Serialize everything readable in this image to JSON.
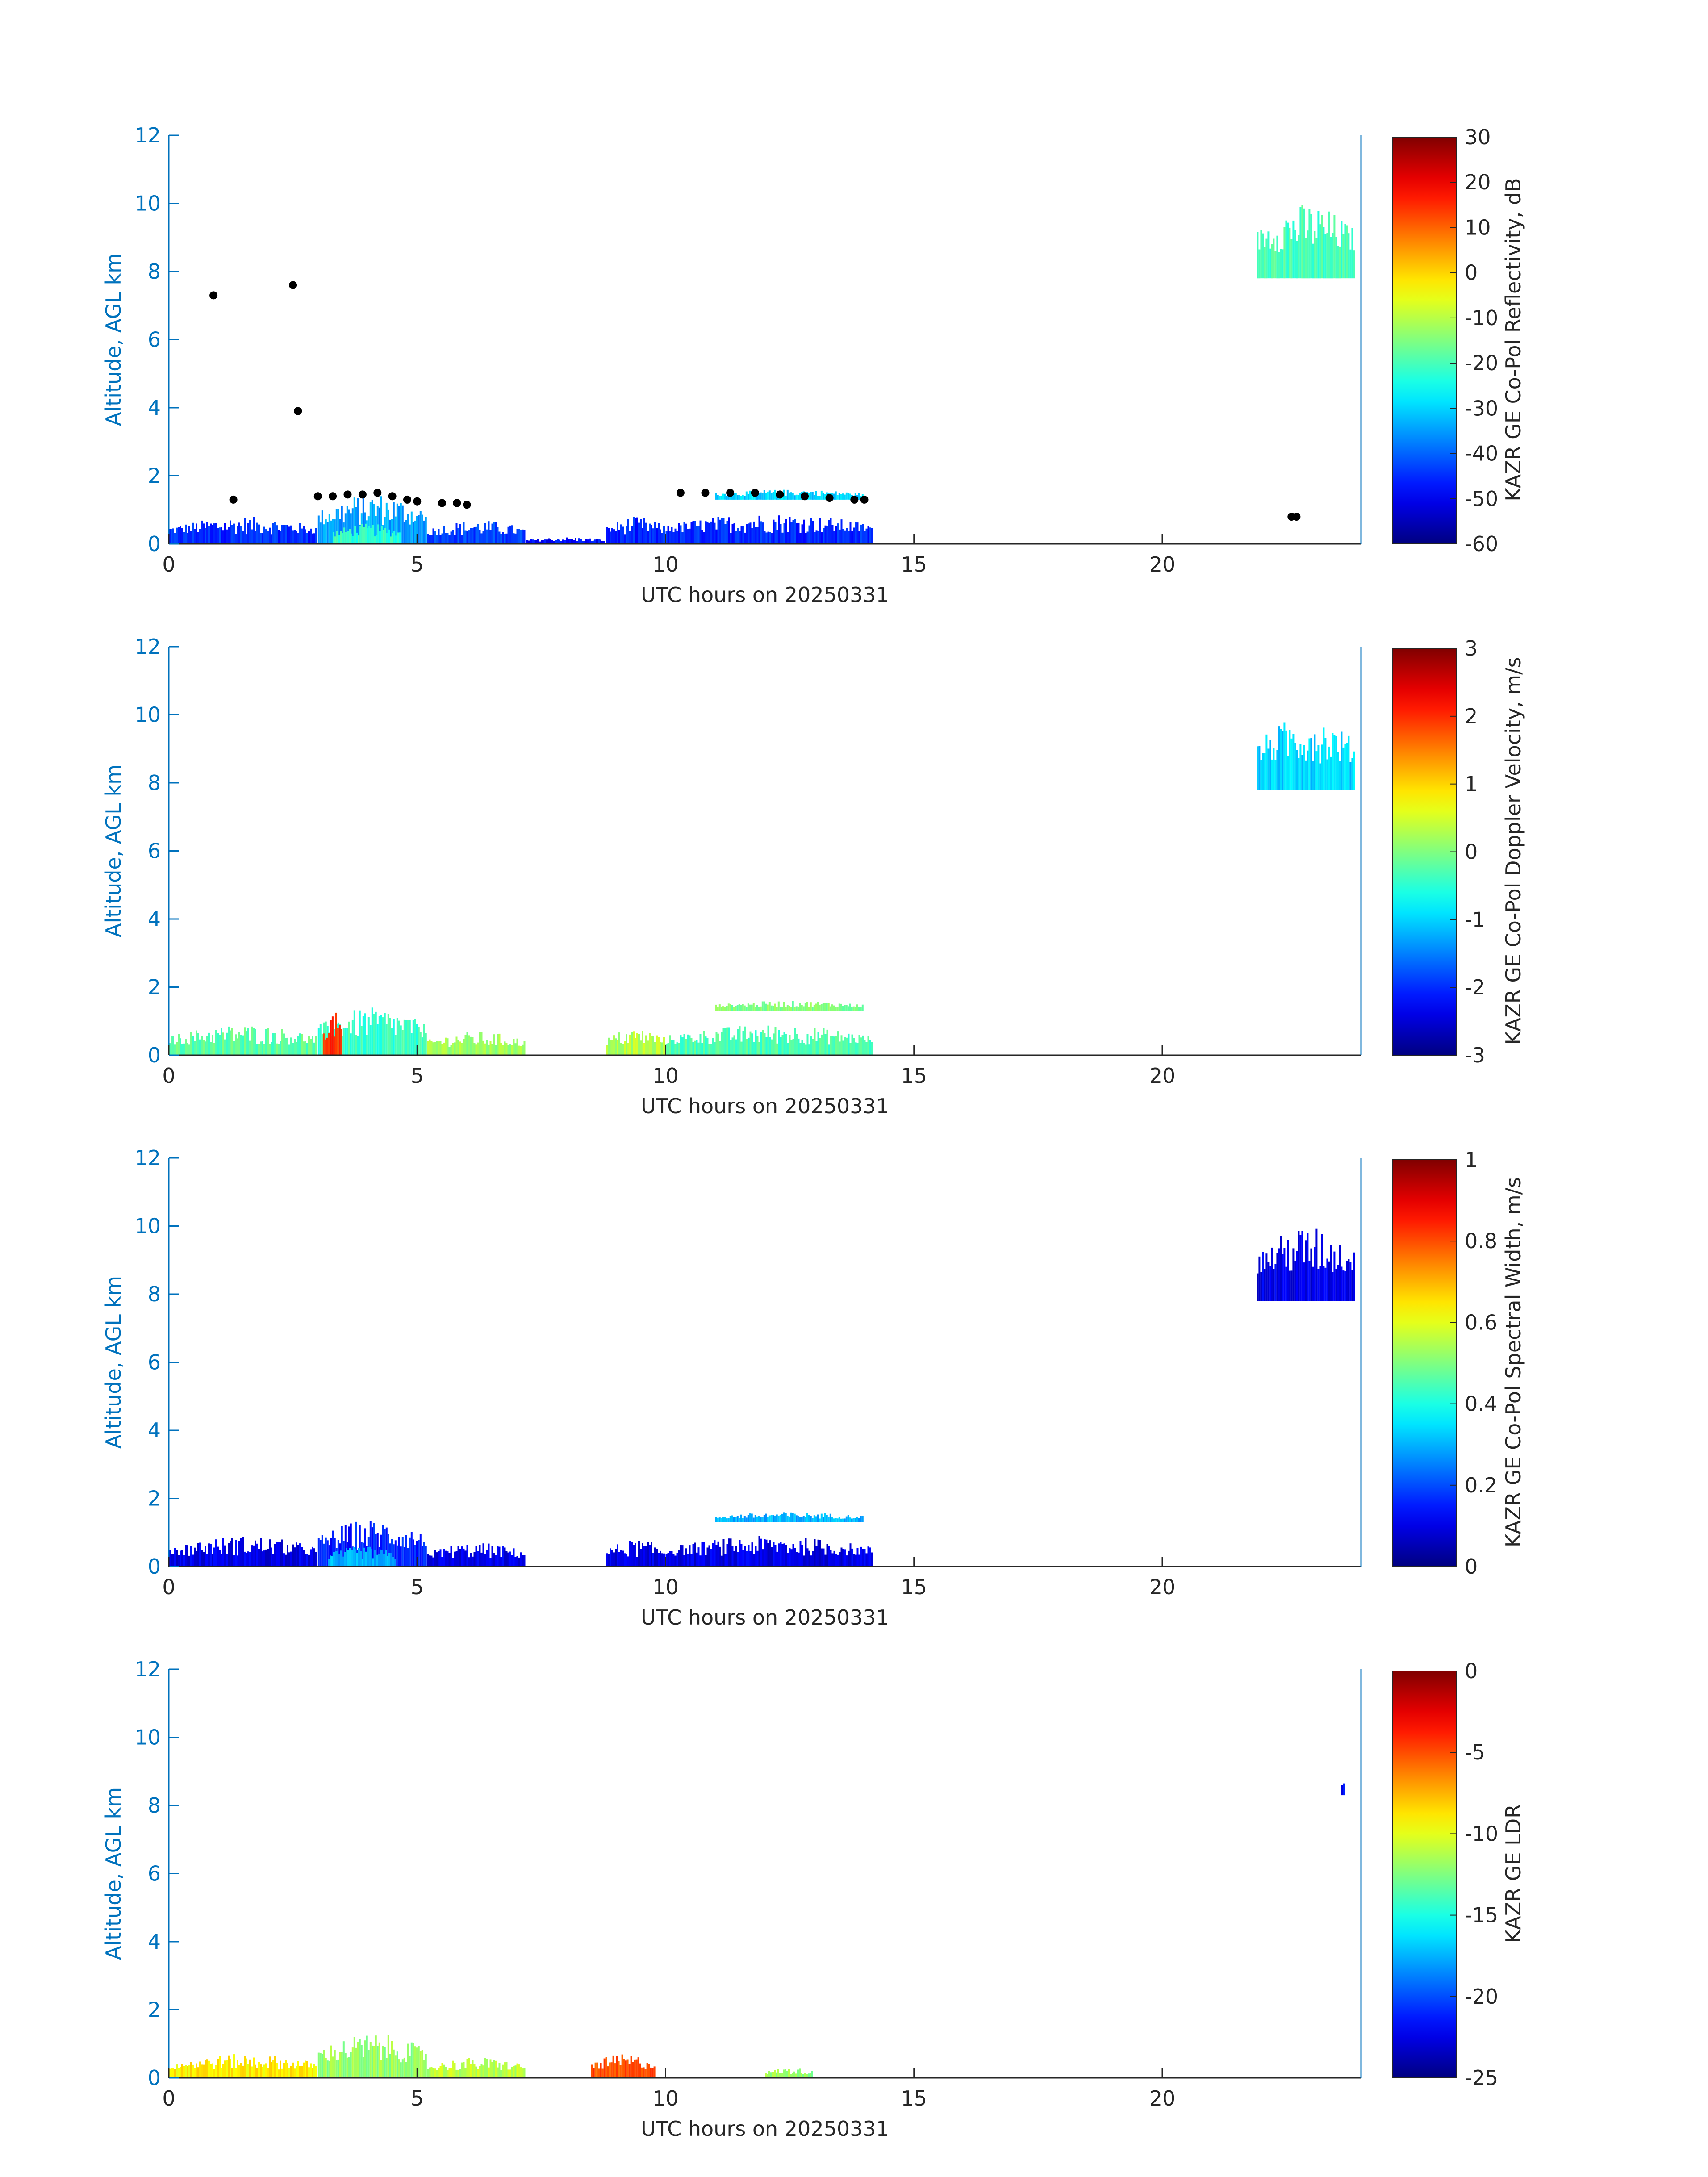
{
  "colors": {
    "axis": "#0072bd",
    "text": "#262626",
    "marker": "#000000"
  },
  "colormap": "jet",
  "chart_data": [
    {
      "type": "heatmap",
      "xlabel": "UTC hours on 20250331",
      "ylabel": "Altitude, AGL km",
      "xlim": [
        0,
        24
      ],
      "ylim": [
        0,
        12
      ],
      "xticks": [
        "0",
        "5",
        "10",
        "15",
        "20"
      ],
      "yticks": [
        "0",
        "2",
        "4",
        "6",
        "8",
        "10",
        "12"
      ],
      "colorbar": {
        "label": "KAZR GE Co-Pol Reflectivity, dB",
        "min": -60,
        "max": 30,
        "ticks": [
          "30",
          "20",
          "10",
          "0",
          "-10",
          "-20",
          "-30",
          "-40",
          "-50",
          "-60"
        ]
      },
      "regions": [
        {
          "x": [
            0,
            3
          ],
          "y": [
            0,
            0.8
          ],
          "value": -45
        },
        {
          "x": [
            3,
            5.2
          ],
          "y": [
            0,
            1.5
          ],
          "value": -35
        },
        {
          "x": [
            3.3,
            4.7
          ],
          "y": [
            0,
            0.6
          ],
          "value": -22
        },
        {
          "x": [
            5.2,
            7.2
          ],
          "y": [
            0,
            0.7
          ],
          "value": -43
        },
        {
          "x": [
            7.2,
            8.8
          ],
          "y": [
            0,
            0.2
          ],
          "value": -48
        },
        {
          "x": [
            8.8,
            10
          ],
          "y": [
            0,
            0.8
          ],
          "value": -46
        },
        {
          "x": [
            10,
            14.2
          ],
          "y": [
            0,
            0.9
          ],
          "value": -45
        },
        {
          "x": [
            11,
            14
          ],
          "y": [
            1.3,
            1.6
          ],
          "value": -30
        },
        {
          "x": [
            21.9,
            23.9
          ],
          "y": [
            7.8,
            10
          ],
          "value": -20
        }
      ],
      "markers": [
        {
          "x": 0.9,
          "y": 7.3
        },
        {
          "x": 2.5,
          "y": 7.6
        },
        {
          "x": 2.6,
          "y": 3.9
        },
        {
          "x": 1.3,
          "y": 1.3
        },
        {
          "x": 3.0,
          "y": 1.4
        },
        {
          "x": 3.3,
          "y": 1.4
        },
        {
          "x": 3.6,
          "y": 1.45
        },
        {
          "x": 3.9,
          "y": 1.45
        },
        {
          "x": 4.2,
          "y": 1.5
        },
        {
          "x": 4.5,
          "y": 1.4
        },
        {
          "x": 4.8,
          "y": 1.3
        },
        {
          "x": 5.0,
          "y": 1.25
        },
        {
          "x": 5.5,
          "y": 1.2
        },
        {
          "x": 5.8,
          "y": 1.2
        },
        {
          "x": 6.0,
          "y": 1.15
        },
        {
          "x": 10.3,
          "y": 1.5
        },
        {
          "x": 10.8,
          "y": 1.5
        },
        {
          "x": 11.3,
          "y": 1.5
        },
        {
          "x": 11.8,
          "y": 1.5
        },
        {
          "x": 12.3,
          "y": 1.45
        },
        {
          "x": 12.8,
          "y": 1.4
        },
        {
          "x": 13.3,
          "y": 1.35
        },
        {
          "x": 13.8,
          "y": 1.3
        },
        {
          "x": 14.0,
          "y": 1.3
        },
        {
          "x": 22.6,
          "y": 0.8
        },
        {
          "x": 22.7,
          "y": 0.8
        }
      ]
    },
    {
      "type": "heatmap",
      "xlabel": "UTC hours on 20250331",
      "ylabel": "Altitude, AGL km",
      "xlim": [
        0,
        24
      ],
      "ylim": [
        0,
        12
      ],
      "xticks": [
        "0",
        "5",
        "10",
        "15",
        "20"
      ],
      "yticks": [
        "0",
        "2",
        "4",
        "6",
        "8",
        "10",
        "12"
      ],
      "colorbar": {
        "label": "KAZR GE Co-Pol Doppler Velocity, m/s",
        "min": -3,
        "max": 3,
        "ticks": [
          "3",
          "2",
          "1",
          "0",
          "-1",
          "-2",
          "-3"
        ]
      },
      "regions": [
        {
          "x": [
            0,
            3
          ],
          "y": [
            0,
            0.9
          ],
          "value": -0.2
        },
        {
          "x": [
            3,
            5.2
          ],
          "y": [
            0,
            1.4
          ],
          "value": -0.4
        },
        {
          "x": [
            3.1,
            3.5
          ],
          "y": [
            0,
            1.3
          ],
          "value": 2.0
        },
        {
          "x": [
            5.2,
            7.2
          ],
          "y": [
            0,
            0.7
          ],
          "value": 0.2
        },
        {
          "x": [
            8.8,
            10
          ],
          "y": [
            0,
            0.8
          ],
          "value": 0.3
        },
        {
          "x": [
            10,
            14.2
          ],
          "y": [
            0,
            0.9
          ],
          "value": -0.3
        },
        {
          "x": [
            11,
            14
          ],
          "y": [
            1.3,
            1.6
          ],
          "value": 0.0
        },
        {
          "x": [
            21.9,
            23.9
          ],
          "y": [
            7.8,
            10
          ],
          "value": -1.0
        }
      ]
    },
    {
      "type": "heatmap",
      "xlabel": "UTC hours on 20250331",
      "ylabel": "Altitude, AGL km",
      "xlim": [
        0,
        24
      ],
      "ylim": [
        0,
        12
      ],
      "xticks": [
        "0",
        "5",
        "10",
        "15",
        "20"
      ],
      "yticks": [
        "0",
        "2",
        "4",
        "6",
        "8",
        "10",
        "12"
      ],
      "colorbar": {
        "label": "KAZR GE Co-Pol Spectral Width, m/s",
        "min": 0,
        "max": 1,
        "ticks": [
          "1",
          "0.8",
          "0.6",
          "0.4",
          "0.2",
          "0"
        ]
      },
      "regions": [
        {
          "x": [
            0,
            3
          ],
          "y": [
            0,
            0.9
          ],
          "value": 0.1
        },
        {
          "x": [
            3,
            5.2
          ],
          "y": [
            0,
            1.4
          ],
          "value": 0.15
        },
        {
          "x": [
            3.2,
            4.6
          ],
          "y": [
            0,
            0.6
          ],
          "value": 0.3
        },
        {
          "x": [
            5.2,
            7.2
          ],
          "y": [
            0,
            0.7
          ],
          "value": 0.1
        },
        {
          "x": [
            8.8,
            10
          ],
          "y": [
            0,
            0.8
          ],
          "value": 0.1
        },
        {
          "x": [
            10,
            14.2
          ],
          "y": [
            0,
            0.9
          ],
          "value": 0.1
        },
        {
          "x": [
            11,
            14
          ],
          "y": [
            1.3,
            1.6
          ],
          "value": 0.3
        },
        {
          "x": [
            21.9,
            23.9
          ],
          "y": [
            7.8,
            10
          ],
          "value": 0.1
        }
      ]
    },
    {
      "type": "heatmap",
      "xlabel": "UTC hours on 20250331",
      "ylabel": "Altitude, AGL km",
      "xlim": [
        0,
        24
      ],
      "ylim": [
        0,
        12
      ],
      "xticks": [
        "0",
        "5",
        "10",
        "15",
        "20"
      ],
      "yticks": [
        "0",
        "2",
        "4",
        "6",
        "8",
        "10",
        "12"
      ],
      "colorbar": {
        "label": "KAZR GE LDR",
        "min": -25,
        "max": 0,
        "ticks": [
          "0",
          "-5",
          "-10",
          "-15",
          "-20",
          "-25"
        ]
      },
      "regions": [
        {
          "x": [
            0,
            3
          ],
          "y": [
            0,
            0.7
          ],
          "value": -9
        },
        {
          "x": [
            3,
            5.2
          ],
          "y": [
            0,
            1.3
          ],
          "value": -12
        },
        {
          "x": [
            5.2,
            7.2
          ],
          "y": [
            0,
            0.6
          ],
          "value": -11
        },
        {
          "x": [
            8.5,
            9.8
          ],
          "y": [
            0,
            0.7
          ],
          "value": -5
        },
        {
          "x": [
            12,
            13
          ],
          "y": [
            0,
            0.3
          ],
          "value": -12
        },
        {
          "x": [
            23.6,
            23.7
          ],
          "y": [
            8.3,
            8.9
          ],
          "value": -22
        }
      ]
    }
  ]
}
